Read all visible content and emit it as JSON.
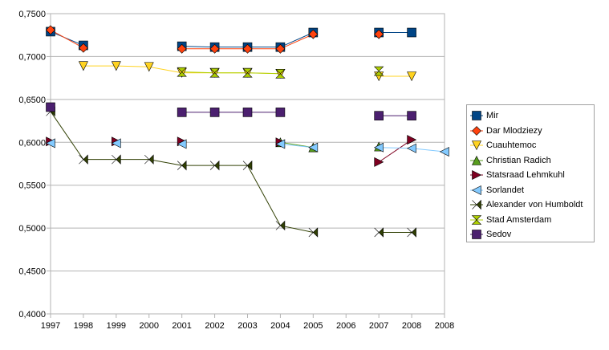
{
  "chart_data": {
    "type": "line",
    "title": "",
    "xlabel": "",
    "ylabel": "",
    "x_tick_labels": [
      "1997",
      "1998",
      "1999",
      "2000",
      "2001",
      "2002",
      "2003",
      "2004",
      "2005",
      "2006",
      "2007",
      "2008",
      "2008"
    ],
    "y_tick_labels": [
      "0,4000",
      "0,4500",
      "0,5000",
      "0,5500",
      "0,6000",
      "0,6500",
      "0,7000",
      "0,7500"
    ],
    "ylim": [
      0.4,
      0.75
    ],
    "grid": "horizontal",
    "legend_position": "right",
    "series": [
      {
        "name": "Mir",
        "color": "#004586",
        "marker": "square",
        "values": [
          0.729,
          0.713,
          null,
          null,
          0.712,
          0.711,
          0.711,
          0.711,
          0.728,
          null,
          0.728,
          0.728,
          null
        ]
      },
      {
        "name": "Dar Mlodziezy",
        "color": "#ff420e",
        "marker": "diamond",
        "values": [
          0.731,
          0.71,
          null,
          null,
          0.709,
          0.709,
          0.709,
          0.709,
          0.726,
          null,
          0.726,
          null,
          null
        ]
      },
      {
        "name": "Cuauhtemoc",
        "color": "#ffd320",
        "marker": "triangle-down",
        "values": [
          null,
          0.689,
          0.689,
          0.688,
          0.681,
          0.681,
          0.681,
          0.68,
          null,
          null,
          0.677,
          0.677,
          null
        ]
      },
      {
        "name": "Christian Radich",
        "color": "#579d1c",
        "marker": "triangle-up",
        "values": [
          null,
          null,
          null,
          null,
          null,
          null,
          null,
          0.6,
          0.594,
          null,
          0.595,
          null,
          null
        ]
      },
      {
        "name": "Statsraad Lehmkuhl",
        "color": "#7e0021",
        "marker": "triangle-right",
        "values": [
          0.601,
          null,
          0.601,
          null,
          0.601,
          null,
          null,
          0.6,
          null,
          null,
          0.577,
          0.603,
          null
        ]
      },
      {
        "name": "Sorlandet",
        "color": "#83caff",
        "marker": "triangle-left",
        "values": [
          0.599,
          null,
          0.599,
          null,
          0.598,
          null,
          null,
          0.598,
          0.594,
          null,
          0.594,
          0.593,
          0.589
        ]
      },
      {
        "name": "Alexander von Humboldt",
        "color": "#314004",
        "marker": "bowtie",
        "values": [
          0.636,
          0.58,
          0.58,
          0.58,
          0.573,
          0.573,
          0.573,
          0.503,
          0.495,
          null,
          0.495,
          0.495,
          null
        ]
      },
      {
        "name": "Stad Amsterdam",
        "color": "#aecf00",
        "marker": "hourglass",
        "values": [
          null,
          null,
          null,
          null,
          0.682,
          0.681,
          0.681,
          0.68,
          null,
          null,
          0.683,
          null,
          null
        ]
      },
      {
        "name": "Sedov",
        "color": "#4b1f6f",
        "marker": "square",
        "values": [
          0.641,
          null,
          null,
          null,
          0.635,
          0.635,
          0.635,
          0.635,
          null,
          null,
          0.631,
          0.631,
          null
        ]
      }
    ]
  }
}
